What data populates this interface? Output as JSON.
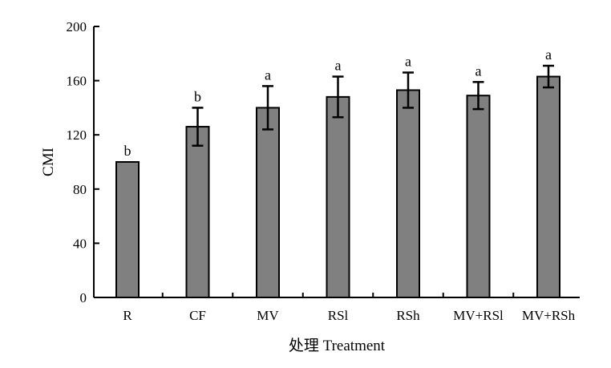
{
  "chart_data": {
    "type": "bar",
    "xlabel": "处理 Treatment",
    "ylabel": "CMI",
    "ylim": [
      0,
      200
    ],
    "yticks": [
      0,
      40,
      80,
      120,
      160,
      200
    ],
    "grid": false,
    "categories": [
      "R",
      "CF",
      "MV",
      "RSl",
      "RSh",
      "MV+RSl",
      "MV+RSh"
    ],
    "values": [
      100,
      126,
      140,
      148,
      153,
      149,
      163
    ],
    "error": [
      0,
      14,
      16,
      15,
      13,
      10,
      8
    ],
    "significance": [
      "b",
      "b",
      "a",
      "a",
      "a",
      "a",
      "a"
    ],
    "colors": {
      "bar_fill": "#808080",
      "bar_stroke": "#000000",
      "axis": "#000000"
    }
  }
}
